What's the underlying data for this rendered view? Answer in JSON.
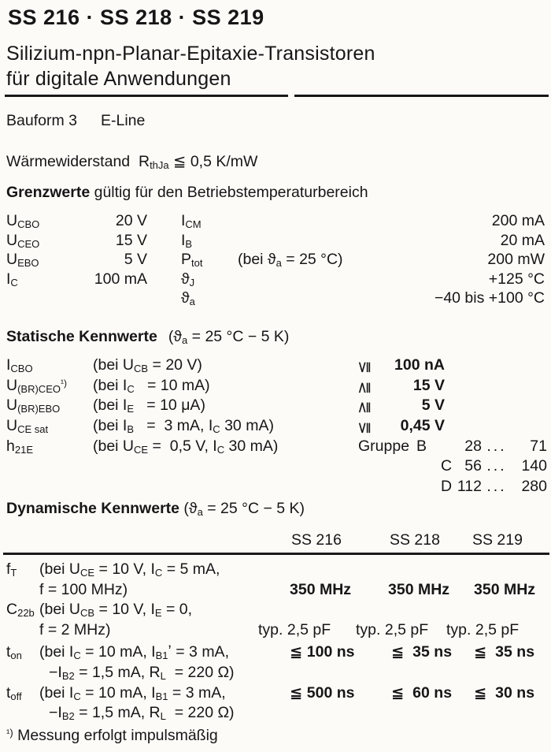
{
  "colors": {
    "ink": "#161616",
    "paper": "#fcfbf8"
  },
  "header": {
    "title": "SS 216 · SS 218 · SS 219",
    "subtitle_line1": "Silizium-npn-Planar-Epitaxie-Transistoren",
    "subtitle_line2": "für digitale Anwendungen"
  },
  "bauform": {
    "label": "Bauform 3",
    "value": "E-Line"
  },
  "thermal": {
    "segments": [
      {
        "t": "Wärmewiderstand  R"
      },
      {
        "s": "thJa"
      },
      {
        "t": " ≦ 0,5 K/mW"
      }
    ]
  },
  "grenzwerte": {
    "bold": "Grenzwerte",
    "rest": " gültig für den Betriebstemperaturbereich"
  },
  "limits": {
    "rows": [
      {
        "p1": [
          {
            "t": "U"
          },
          {
            "s": "CBO"
          }
        ],
        "v1": "20 V",
        "p2": [
          {
            "t": "I"
          },
          {
            "s": "CM"
          }
        ],
        "cond": [],
        "v2": "200 mA"
      },
      {
        "p1": [
          {
            "t": "U"
          },
          {
            "s": "CEO"
          }
        ],
        "v1": "15 V",
        "p2": [
          {
            "t": "I"
          },
          {
            "s": "B"
          }
        ],
        "cond": [],
        "v2": "20 mA"
      },
      {
        "p1": [
          {
            "t": "U"
          },
          {
            "s": "EBO"
          }
        ],
        "v1": "5 V",
        "p2": [
          {
            "t": "P"
          },
          {
            "s": "tot"
          }
        ],
        "cond": [
          {
            "t": "(bei ϑ"
          },
          {
            "s": "a"
          },
          {
            "t": " = 25 °C)"
          }
        ],
        "v2": "200 mW"
      },
      {
        "p1": [
          {
            "t": "I"
          },
          {
            "s": "C"
          }
        ],
        "v1": "100 mA",
        "p2": [
          {
            "t": "ϑ"
          },
          {
            "s": "J"
          }
        ],
        "cond": [],
        "v2": "+125 °C"
      },
      {
        "p1": [],
        "v1": "",
        "p2": [
          {
            "t": "ϑ"
          },
          {
            "s": "a"
          }
        ],
        "cond": [],
        "v2": "−40 bis +100 °C"
      }
    ]
  },
  "statik": {
    "heading_bold": "Statische Kennwerte",
    "heading_cond": [
      {
        "t": "(ϑ"
      },
      {
        "s": "a"
      },
      {
        "t": " = 25 °C − 5 K)"
      }
    ],
    "rows": [
      {
        "sym": [
          {
            "t": "I"
          },
          {
            "s": "CBO"
          }
        ],
        "cond": [
          {
            "t": "(bei U"
          },
          {
            "s": "CB"
          },
          {
            "t": " = 20 V)"
          }
        ],
        "rel": "≦",
        "val": "100 nA"
      },
      {
        "sym": [
          {
            "t": "U"
          },
          {
            "s": "(BR)CEO"
          },
          {
            "p": "¹)"
          }
        ],
        "cond": [
          {
            "t": "(bei I"
          },
          {
            "s": "C"
          },
          {
            "t": "   = 10 mA)"
          }
        ],
        "rel": "≧",
        "val": "15 V"
      },
      {
        "sym": [
          {
            "t": "U"
          },
          {
            "s": "(BR)EBO"
          }
        ],
        "cond": [
          {
            "t": "(bei I"
          },
          {
            "s": "E"
          },
          {
            "t": "   = 10 μA)"
          }
        ],
        "rel": "≧",
        "val": "5 V"
      },
      {
        "sym": [
          {
            "t": "U"
          },
          {
            "s": "CE sat"
          }
        ],
        "cond": [
          {
            "t": "(bei I"
          },
          {
            "s": "B"
          },
          {
            "t": "   =  3 mA, I"
          },
          {
            "s": "C"
          },
          {
            "t": " 30 mA)"
          }
        ],
        "rel": "≦",
        "val": "0,45 V"
      },
      {
        "sym": [
          {
            "t": "h"
          },
          {
            "s": "21E"
          }
        ],
        "cond": [
          {
            "t": "(bei U"
          },
          {
            "s": "CE"
          },
          {
            "t": " =  0,5 V, I"
          },
          {
            "s": "C"
          },
          {
            "t": " 30 mA)"
          }
        ],
        "rel": "",
        "val": ""
      }
    ],
    "gruppe_label": "Gruppe",
    "gruppe_rows": [
      {
        "g": "B",
        "from": "28",
        "dots": "...",
        "to": "71"
      },
      {
        "g": "C",
        "from": "56",
        "dots": "...",
        "to": "140"
      },
      {
        "g": "D",
        "from": "112",
        "dots": "...",
        "to": "280"
      }
    ]
  },
  "dynamik": {
    "heading_bold": "Dynamische Kennwerte",
    "heading_cond": [
      {
        "t": "(ϑ"
      },
      {
        "s": "a"
      },
      {
        "t": " = 25 °C − 5 K)"
      }
    ],
    "columns": [
      "SS 216",
      "SS 218",
      "SS 219"
    ],
    "rows": [
      {
        "sym": [
          {
            "t": "f"
          },
          {
            "s": "T"
          }
        ],
        "l1": [
          {
            "t": "(bei U"
          },
          {
            "s": "CE"
          },
          {
            "t": " = 10 V, I"
          },
          {
            "s": "C"
          },
          {
            "t": " = 5 mA,"
          }
        ],
        "l2": [
          {
            "t": "f = 100 MHz)"
          }
        ],
        "values": [
          "350 MHz",
          "350 MHz",
          "350 MHz"
        ]
      },
      {
        "sym": [
          {
            "t": "C"
          },
          {
            "s": "22b"
          }
        ],
        "l1": [
          {
            "t": "(bei U"
          },
          {
            "s": "CB"
          },
          {
            "t": " = 10 V, I"
          },
          {
            "s": "E"
          },
          {
            "t": " = 0,"
          }
        ],
        "l2": [
          {
            "t": "f = 2 MHz)"
          }
        ],
        "values": [
          "typ. 2,5 pF",
          "typ. 2,5 pF",
          "typ. 2,5 pF"
        ]
      },
      {
        "sym": [
          {
            "t": "t"
          },
          {
            "s": "on"
          }
        ],
        "l1": [
          {
            "t": "(bei I"
          },
          {
            "s": "C"
          },
          {
            "t": " = 10 mA, I"
          },
          {
            "s": "B1"
          },
          {
            "t": "ʼ = 3 mA,"
          }
        ],
        "l2": [
          {
            "t": "−I"
          },
          {
            "s": "B2"
          },
          {
            "t": " = 1,5 mA, R"
          },
          {
            "s": "L"
          },
          {
            "t": "  = 220 Ω)"
          }
        ],
        "values": [
          "≦ 100 ns",
          "≦  35 ns",
          "≦  35 ns"
        ]
      },
      {
        "sym": [
          {
            "t": "t"
          },
          {
            "s": "off"
          }
        ],
        "l1": [
          {
            "t": "(bei I"
          },
          {
            "s": "C"
          },
          {
            "t": " = 10 mA, I"
          },
          {
            "s": "B1"
          },
          {
            "t": " = 3 mA,"
          }
        ],
        "l2": [
          {
            "t": "−I"
          },
          {
            "s": "B2"
          },
          {
            "t": " = 1,5 mA, R"
          },
          {
            "s": "L"
          },
          {
            "t": "  = 220 Ω)"
          }
        ],
        "values": [
          "≦ 500 ns",
          "≦  60 ns",
          "≦  30 ns"
        ]
      }
    ]
  },
  "footnote": [
    {
      "p": "¹)"
    },
    {
      "t": " Messung erfolgt impulsmäßig"
    }
  ]
}
